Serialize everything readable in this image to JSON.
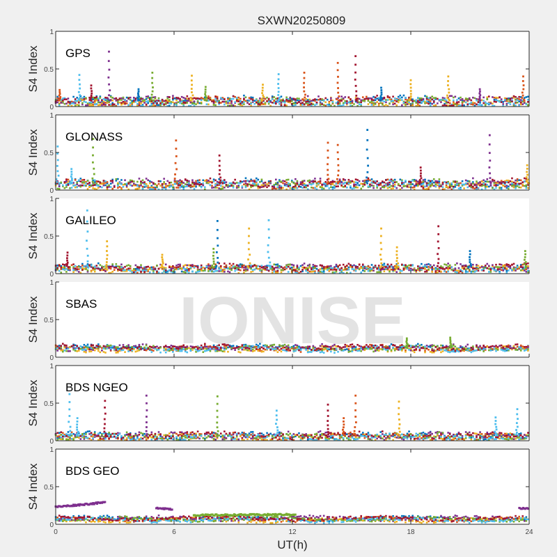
{
  "chart_data": {
    "type": "scatter",
    "title": "SXWN20250809",
    "xlabel": "UT(h)",
    "ylabel": "S4 Index",
    "xlim": [
      0,
      24
    ],
    "ylim": [
      0,
      1
    ],
    "xticks": [
      "0",
      "6",
      "12",
      "18",
      "24"
    ],
    "yticks": [
      "0",
      "0.5",
      "1"
    ],
    "watermark": "IONISE",
    "series_colors": [
      "#0072bd",
      "#d95319",
      "#edb120",
      "#7e2f8e",
      "#77ac30",
      "#4dbeee",
      "#a2142f"
    ],
    "panels": [
      {
        "name": "GPS",
        "boxed": true,
        "baseline": 0.08,
        "noise": 0.05,
        "spikes": [
          [
            0.2,
            0.22,
            1
          ],
          [
            1.2,
            0.42,
            5
          ],
          [
            1.8,
            0.28,
            6
          ],
          [
            2.7,
            0.73,
            3
          ],
          [
            4.2,
            0.23,
            0
          ],
          [
            4.9,
            0.45,
            4
          ],
          [
            6.9,
            0.41,
            2
          ],
          [
            7.6,
            0.26,
            4
          ],
          [
            10.5,
            0.29,
            2
          ],
          [
            11.3,
            0.43,
            5
          ],
          [
            12.6,
            0.45,
            1
          ],
          [
            14.3,
            0.58,
            1
          ],
          [
            15.2,
            0.67,
            6
          ],
          [
            16.5,
            0.25,
            0
          ],
          [
            18.0,
            0.35,
            2
          ],
          [
            19.9,
            0.4,
            2
          ],
          [
            21.5,
            0.23,
            3
          ],
          [
            23.7,
            0.4,
            1
          ]
        ]
      },
      {
        "name": "GLONASS",
        "boxed": true,
        "baseline": 0.09,
        "noise": 0.05,
        "spikes": [
          [
            0.1,
            0.58,
            5
          ],
          [
            0.8,
            0.28,
            5
          ],
          [
            1.9,
            0.68,
            4
          ],
          [
            6.1,
            0.66,
            1
          ],
          [
            8.3,
            0.46,
            6
          ],
          [
            13.8,
            0.63,
            1
          ],
          [
            14.3,
            0.6,
            1
          ],
          [
            15.8,
            0.8,
            0
          ],
          [
            18.5,
            0.3,
            6
          ],
          [
            22.0,
            0.73,
            3
          ],
          [
            23.9,
            0.33,
            2
          ]
        ]
      },
      {
        "name": "GALILEO",
        "boxed": false,
        "baseline": 0.08,
        "noise": 0.04,
        "spikes": [
          [
            0.6,
            0.28,
            6
          ],
          [
            1.6,
            0.84,
            5
          ],
          [
            2.6,
            0.43,
            2
          ],
          [
            5.4,
            0.25,
            2
          ],
          [
            8.0,
            0.33,
            4
          ],
          [
            8.2,
            0.7,
            0
          ],
          [
            9.8,
            0.6,
            2
          ],
          [
            10.8,
            0.71,
            5
          ],
          [
            16.5,
            0.6,
            2
          ],
          [
            17.3,
            0.35,
            2
          ],
          [
            19.4,
            0.63,
            6
          ],
          [
            21.0,
            0.3,
            0
          ],
          [
            23.8,
            0.3,
            4
          ]
        ]
      },
      {
        "name": "SBAS",
        "boxed": false,
        "baseline": 0.13,
        "noise": 0.03,
        "spikes": [
          [
            17.8,
            0.25,
            4
          ],
          [
            20.0,
            0.26,
            4
          ]
        ]
      },
      {
        "name": "BDS NGEO",
        "boxed": true,
        "baseline": 0.07,
        "noise": 0.04,
        "spikes": [
          [
            0.7,
            0.62,
            5
          ],
          [
            1.1,
            0.3,
            5
          ],
          [
            2.5,
            0.53,
            6
          ],
          [
            4.6,
            0.6,
            3
          ],
          [
            8.2,
            0.59,
            4
          ],
          [
            11.2,
            0.4,
            5
          ],
          [
            13.8,
            0.48,
            6
          ],
          [
            14.6,
            0.3,
            1
          ],
          [
            15.2,
            0.6,
            1
          ],
          [
            17.4,
            0.52,
            2
          ],
          [
            22.3,
            0.31,
            5
          ],
          [
            23.4,
            0.42,
            5
          ]
        ]
      },
      {
        "name": "BDS GEO",
        "boxed": true,
        "baseline": 0.08,
        "noise": 0.02,
        "segments": [
          {
            "x": [
              0,
              2.5
            ],
            "y": [
              0.23,
              0.29
            ],
            "color": 3
          },
          {
            "x": [
              5.1,
              5.9
            ],
            "y": [
              0.22,
              0.2
            ],
            "color": 3
          },
          {
            "x": [
              7.0,
              12.2
            ],
            "y": [
              0.12,
              0.13
            ],
            "color": 4
          },
          {
            "x": [
              23.5,
              24
            ],
            "y": [
              0.21,
              0.21
            ],
            "color": 3
          }
        ],
        "spikes": []
      }
    ]
  }
}
